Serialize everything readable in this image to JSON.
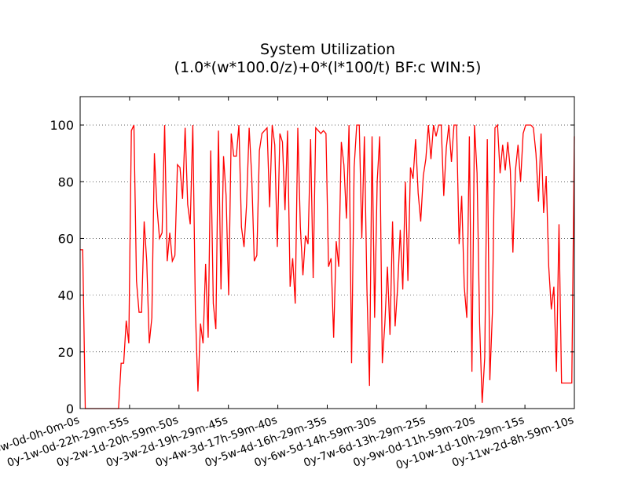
{
  "chart_data": {
    "type": "line",
    "title": "System Utilization",
    "subtitle": "(1.0*(w*100.0/z)+0*(l*100/t)   BF:c   WIN:5)",
    "xlabel": "",
    "ylabel": "",
    "ylim": [
      0,
      110
    ],
    "yticks": [
      0,
      20,
      40,
      60,
      80,
      100
    ],
    "grid": "horizontal dotted",
    "xtick_labels": [
      "0y-0w-0d-0h-0m-0s",
      "0y-1w-0d-22h-29m-55s",
      "0y-2w-1d-20h-59m-50s",
      "0y-3w-2d-19h-29m-45s",
      "0y-4w-3d-17h-59m-40s",
      "0y-5w-4d-16h-29m-35s",
      "0y-6w-5d-14h-59m-30s",
      "0y-7w-6d-13h-29m-25s",
      "0y-9w-0d-11h-59m-20s",
      "0y-10w-1d-10h-29m-15s",
      "0y-11w-2d-8h-59m-10s"
    ],
    "series": [
      {
        "color": "#ff0000",
        "values": [
          56,
          56,
          0,
          0,
          0,
          0,
          0,
          0,
          0,
          0,
          0,
          0,
          0,
          0,
          0,
          0,
          16,
          16,
          31,
          23,
          98,
          100,
          45,
          34,
          34,
          66,
          52,
          23,
          32,
          90,
          71,
          60,
          62,
          100,
          52,
          62,
          52,
          54,
          86,
          85,
          74,
          99,
          72,
          65,
          100,
          35,
          6,
          30,
          23,
          51,
          25,
          91,
          37,
          28,
          98,
          42,
          89,
          75,
          40,
          97,
          89,
          89,
          100,
          64,
          57,
          72,
          99,
          82,
          52,
          54,
          91,
          97,
          98,
          99,
          71,
          100,
          93,
          57,
          97,
          94,
          70,
          98,
          43,
          53,
          37,
          99,
          64,
          47,
          61,
          58,
          95,
          46,
          99,
          98,
          97,
          98,
          97,
          50,
          53,
          25,
          59,
          50,
          94,
          86,
          67,
          100,
          16,
          85,
          100,
          100,
          60,
          96,
          42,
          8,
          96,
          32,
          80,
          96,
          16,
          30,
          50,
          26,
          66,
          29,
          43,
          63,
          42,
          80,
          45,
          85,
          81,
          95,
          76,
          66,
          82,
          88,
          100,
          88,
          100,
          96,
          100,
          100,
          75,
          92,
          100,
          87,
          100,
          100,
          58,
          75,
          43,
          32,
          96,
          13,
          100,
          83,
          30,
          2,
          18,
          95,
          10,
          34,
          99,
          100,
          83,
          93,
          84,
          94,
          84,
          55,
          84,
          93,
          80,
          97,
          100,
          100,
          100,
          99,
          90,
          73,
          97,
          69,
          82,
          50,
          35,
          43,
          13,
          65,
          9,
          9,
          9,
          9,
          9,
          96
        ]
      }
    ]
  }
}
